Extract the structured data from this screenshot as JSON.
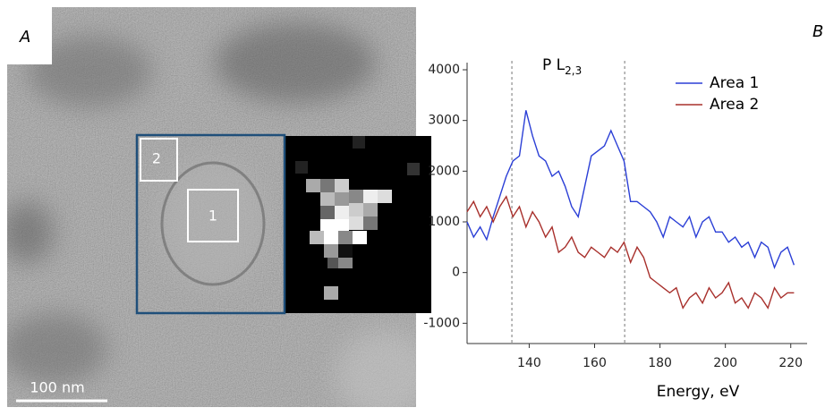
{
  "panel_a": {
    "label": "A",
    "scale_bar": "100 nm",
    "regions": [
      "1",
      "2"
    ]
  },
  "chart_data": {
    "type": "line",
    "panel_label": "B",
    "x_label": "Energy, eV",
    "annotation": {
      "text": "P L",
      "sub": "2,3"
    },
    "vlines": [
      134.7,
      169.2
    ],
    "xlim": [
      121,
      225
    ],
    "xticks": [
      140,
      160,
      180,
      200,
      220
    ],
    "ylim": [
      -1400,
      4000
    ],
    "yticks": [
      -1000,
      0,
      1000,
      2000,
      3000,
      4000
    ],
    "legend": "upper right",
    "x": [
      121,
      123,
      125,
      127,
      129,
      131,
      133,
      135,
      137,
      139,
      141,
      143,
      145,
      147,
      149,
      151,
      153,
      155,
      157,
      159,
      161,
      163,
      165,
      167,
      169,
      171,
      173,
      175,
      177,
      179,
      181,
      183,
      185,
      187,
      189,
      191,
      193,
      195,
      197,
      199,
      201,
      203,
      205,
      207,
      209,
      211,
      213,
      215,
      217,
      219,
      221
    ],
    "series": [
      {
        "name": "Area 1",
        "color": "#2b3fd6",
        "values": [
          1000,
          700,
          900,
          650,
          1100,
          1500,
          1900,
          2200,
          2300,
          3200,
          2700,
          2300,
          2200,
          1900,
          2000,
          1700,
          1300,
          1100,
          1700,
          2300,
          2400,
          2500,
          2800,
          2500,
          2200,
          1400,
          1400,
          1300,
          1200,
          1000,
          700,
          1100,
          1000,
          900,
          1100,
          700,
          1000,
          1100,
          800,
          800,
          600,
          700,
          500,
          600,
          300,
          600,
          500,
          100,
          400,
          500,
          150
        ]
      },
      {
        "name": "Area 2",
        "color": "#a8302c",
        "values": [
          1200,
          1400,
          1100,
          1300,
          1000,
          1300,
          1500,
          1100,
          1300,
          900,
          1200,
          1000,
          700,
          900,
          400,
          500,
          700,
          400,
          300,
          500,
          400,
          300,
          500,
          400,
          600,
          200,
          500,
          300,
          -100,
          -200,
          -300,
          -400,
          -300,
          -700,
          -500,
          -400,
          -600,
          -300,
          -500,
          -400,
          -200,
          -600,
          -500,
          -700,
          -400,
          -500,
          -700,
          -300,
          -500,
          -400,
          -400
        ]
      }
    ]
  }
}
